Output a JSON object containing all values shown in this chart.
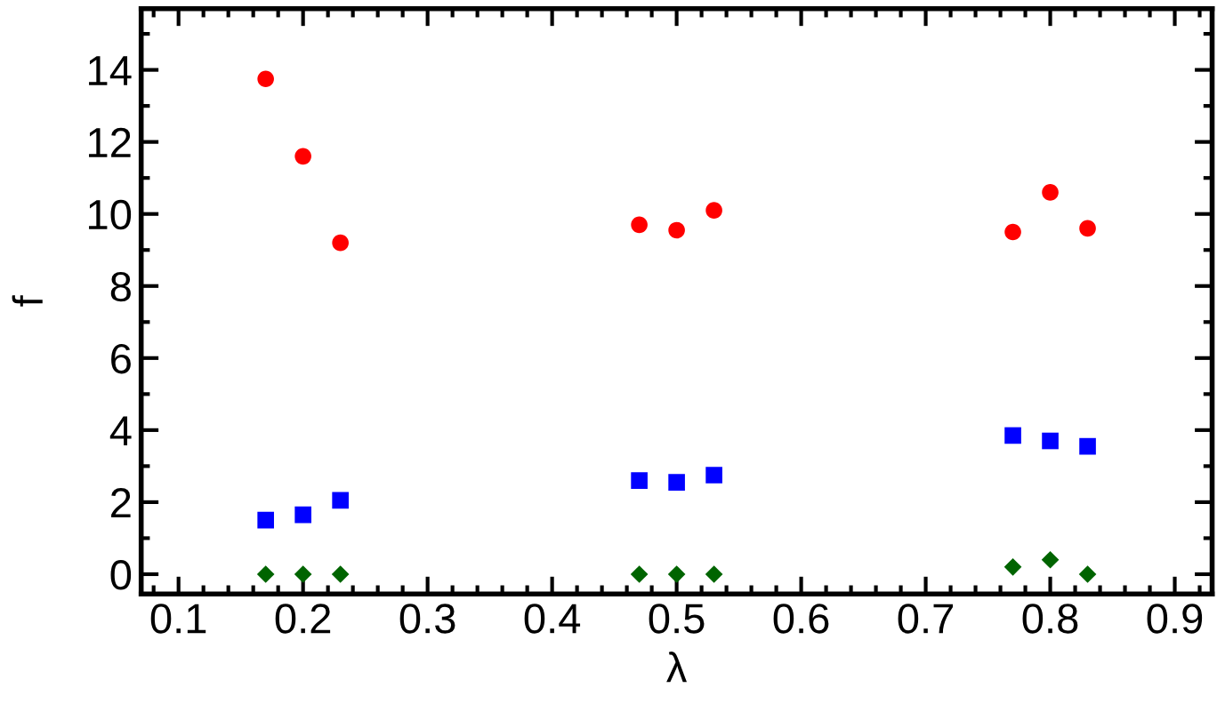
{
  "chart_data": {
    "type": "scatter",
    "xlabel": "λ",
    "ylabel": "f",
    "xlim": [
      0.07,
      0.93
    ],
    "ylim": [
      -0.55,
      15.7
    ],
    "xticks": [
      0.1,
      0.2,
      0.3,
      0.4,
      0.5,
      0.6,
      0.7,
      0.8,
      0.9
    ],
    "yticks": [
      0,
      2,
      4,
      6,
      8,
      10,
      12,
      14
    ],
    "x": [
      0.17,
      0.2,
      0.23,
      0.47,
      0.5,
      0.53,
      0.77,
      0.8,
      0.83
    ],
    "grid": false,
    "legend": false,
    "series": [
      {
        "color": "#ff0000",
        "marker": "circle",
        "values": [
          13.75,
          11.6,
          9.2,
          9.7,
          9.55,
          10.1,
          9.5,
          10.6,
          9.6
        ]
      },
      {
        "color": "#0000ff",
        "marker": "square",
        "values": [
          1.5,
          1.65,
          2.05,
          2.6,
          2.55,
          2.75,
          3.85,
          3.7,
          3.55
        ]
      },
      {
        "color": "#006400",
        "marker": "diamond",
        "values": [
          0,
          0,
          0,
          0,
          0,
          0,
          0.2,
          0.4,
          0
        ]
      }
    ]
  }
}
